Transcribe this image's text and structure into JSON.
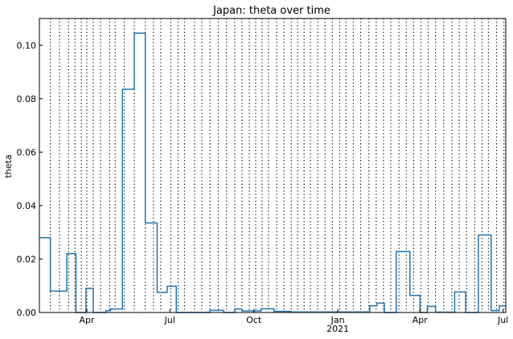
{
  "chart_data": {
    "type": "line",
    "title": "Japan: theta over time",
    "xlabel": "",
    "ylabel": "theta",
    "xlim": [
      "2020-02-09",
      "2021-07-04"
    ],
    "ylim": [
      0,
      0.11
    ],
    "y_ticks": [
      "0.00",
      "0.02",
      "0.04",
      "0.06",
      "0.08",
      "0.10"
    ],
    "x_ticks": [
      {
        "date": "2020-04-01",
        "label": "Apr",
        "sublabel": ""
      },
      {
        "date": "2020-07-01",
        "label": "Jul",
        "sublabel": ""
      },
      {
        "date": "2020-10-01",
        "label": "Oct",
        "sublabel": ""
      },
      {
        "date": "2021-01-01",
        "label": "Jan",
        "sublabel": "2021"
      },
      {
        "date": "2021-04-01",
        "label": "Apr",
        "sublabel": ""
      },
      {
        "date": "2021-07-01",
        "label": "Jul",
        "sublabel": ""
      }
    ],
    "vertical_lines": [
      "2020-02-21",
      "2020-03-02",
      "2020-03-12",
      "2020-03-19",
      "2020-03-26",
      "2020-04-01",
      "2020-04-08",
      "2020-04-16",
      "2020-04-26",
      "2020-05-02",
      "2020-05-12",
      "2020-05-23",
      "2020-06-04",
      "2020-06-13",
      "2020-06-21",
      "2020-07-02",
      "2020-07-10",
      "2020-07-17",
      "2020-07-28",
      "2020-08-05",
      "2020-08-14",
      "2020-08-23",
      "2020-09-01",
      "2020-09-10",
      "2020-09-18",
      "2020-09-26",
      "2020-10-03",
      "2020-10-10",
      "2020-10-17",
      "2020-10-26",
      "2020-11-03",
      "2020-11-11",
      "2020-11-18",
      "2020-11-25",
      "2020-12-02",
      "2020-12-10",
      "2020-12-18",
      "2020-12-26",
      "2021-01-03",
      "2021-01-10",
      "2021-01-18",
      "2021-01-26",
      "2021-02-04",
      "2021-02-12",
      "2021-02-20",
      "2021-02-28",
      "2021-03-09",
      "2021-03-17",
      "2021-03-25",
      "2021-04-02",
      "2021-04-10",
      "2021-04-18",
      "2021-04-27",
      "2021-05-06",
      "2021-05-14",
      "2021-05-22",
      "2021-05-31",
      "2021-06-08",
      "2021-06-15",
      "2021-06-24",
      "2021-07-02"
    ],
    "series": [
      {
        "name": "",
        "color": "#1f77b4",
        "x": [
          "2020-02-09",
          "2020-02-21",
          "2020-03-10",
          "2020-03-20",
          "2020-03-31",
          "2020-04-08",
          "2020-04-22",
          "2020-04-27",
          "2020-05-10",
          "2020-05-23",
          "2020-06-04",
          "2020-06-17",
          "2020-06-28",
          "2020-07-08",
          "2020-08-14",
          "2020-08-29",
          "2020-09-10",
          "2020-09-18",
          "2020-10-09",
          "2020-10-23",
          "2020-11-10",
          "2021-02-05",
          "2021-02-13",
          "2021-02-21",
          "2021-03-06",
          "2021-03-21",
          "2021-04-01",
          "2021-04-09",
          "2021-04-18",
          "2021-05-09",
          "2021-05-21",
          "2021-06-04",
          "2021-06-18",
          "2021-06-27",
          "2021-07-04"
        ],
        "y": [
          0.028,
          0.008,
          0.022,
          0.0,
          0.009,
          0.0,
          0.0007,
          0.0013,
          0.0835,
          0.1045,
          0.0335,
          0.0075,
          0.0098,
          0.0,
          0.0008,
          0.0,
          0.0013,
          0.0006,
          0.0014,
          0.0004,
          0.0002,
          0.0025,
          0.0035,
          0.0,
          0.0228,
          0.0064,
          0.0,
          0.0023,
          0.0001,
          0.0077,
          0.0,
          0.029,
          0.0007,
          0.0025,
          0.0025
        ]
      }
    ],
    "grid": false
  }
}
